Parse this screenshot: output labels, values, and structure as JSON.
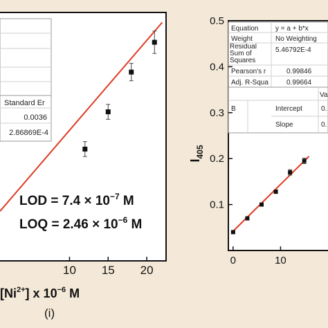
{
  "colors": {
    "page_bg": "#f4e9d8",
    "plot_bg": "#ffffff",
    "fit_line": "#e03a24",
    "marker": "#111111",
    "table_border": "#9a9a9a"
  },
  "caption": "(i)",
  "left_panel": {
    "lod_text": "LOD = 7.4 × 10",
    "lod_exp": "−7",
    "lod_unit": " M",
    "loq_text": "LOQ = 2.46 × 10",
    "loq_exp": "−6",
    "loq_unit": " M",
    "xlabel_pre": "[Ni",
    "xlabel_sup": "2+",
    "xlabel_post": "] x 10",
    "xlabel_exp": "−6",
    "xlabel_unit": " M",
    "table": {
      "header": "Standard Er",
      "row1": "0.0036",
      "row2": "2.86869E-4"
    }
  },
  "right_panel": {
    "ylabel_main": "I",
    "ylabel_sub": "405",
    "table": {
      "rows": [
        {
          "label": "Equation",
          "value": "y = a + b*x"
        },
        {
          "label": "Weight",
          "value": "No Weighting"
        },
        {
          "label": "Residual Sum of Squares",
          "value": "5.46792E-4"
        },
        {
          "label": "Pearson's r",
          "value": "0.99846"
        },
        {
          "label": "Adj. R-Squa",
          "value": "0.99664"
        }
      ],
      "col_head": "Va",
      "b_label": "B",
      "intercept_label": "Intercept",
      "intercept_value": "0.",
      "slope_label": "Slope",
      "slope_value": "0."
    }
  },
  "chart_data": [
    {
      "type": "scatter",
      "title": "",
      "xlabel": "[Ni2+] x 10−6 M",
      "ylabel": "",
      "xlim": [
        1,
        22.5
      ],
      "ylim": [
        0,
        1
      ],
      "x_ticks": [
        10,
        15,
        20
      ],
      "x_tick_labels": [
        "10",
        "15",
        "20"
      ],
      "series": [
        {
          "x": [
            12,
            15,
            18,
            21
          ],
          "y": [
            0.45,
            0.6,
            0.76,
            0.88
          ],
          "error": [
            0.03,
            0.03,
            0.035,
            0.045
          ]
        }
      ],
      "fit_line": {
        "x": [
          1,
          22
        ],
        "y": [
          0.2,
          0.96
        ]
      },
      "grid": false
    },
    {
      "type": "scatter",
      "title": "",
      "xlabel": "",
      "ylabel": "I405",
      "xlim": [
        -1,
        20
      ],
      "ylim": [
        0,
        0.5
      ],
      "x_ticks": [
        0,
        10
      ],
      "x_tick_labels": [
        "0",
        "10"
      ],
      "y_ticks": [
        0.1,
        0.2,
        0.3,
        0.4,
        0.5
      ],
      "y_tick_labels": [
        "0.1",
        "0.2",
        "0.3",
        "0.4",
        "0.5"
      ],
      "series": [
        {
          "x": [
            0,
            3,
            6,
            9,
            12,
            15
          ],
          "y": [
            0.04,
            0.07,
            0.1,
            0.128,
            0.17,
            0.195
          ],
          "error": [
            0.003,
            0.003,
            0.003,
            0.004,
            0.006,
            0.006
          ]
        }
      ],
      "fit_line": {
        "x": [
          0,
          16
        ],
        "y": [
          0.042,
          0.205
        ]
      },
      "grid": false
    }
  ]
}
